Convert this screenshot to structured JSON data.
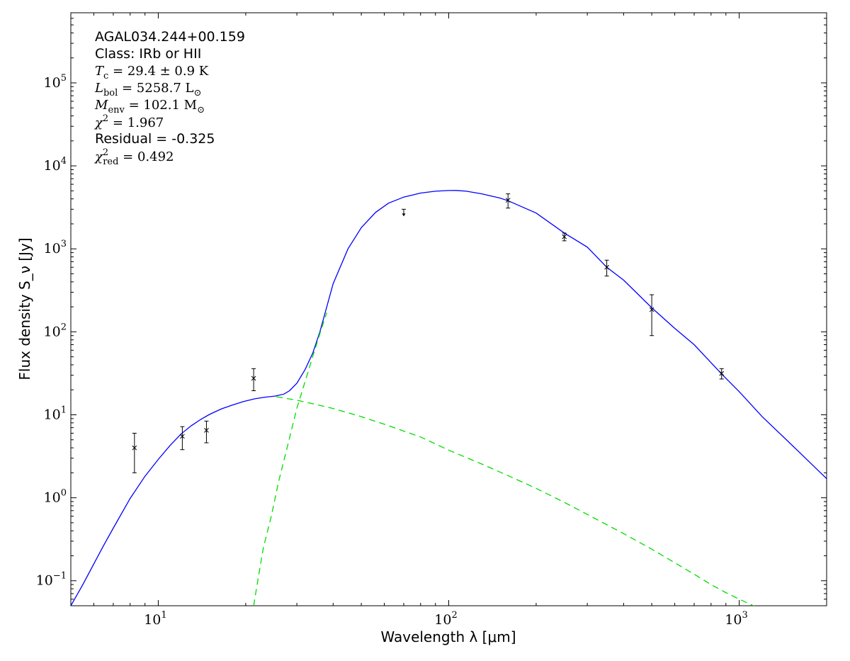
{
  "chart_data": {
    "type": "scatter",
    "xscale": "log",
    "yscale": "log",
    "xlim": [
      5,
      2000
    ],
    "ylim": [
      0.05,
      700000
    ],
    "grid": false,
    "xlabel": "Wavelength λ [μm]",
    "ylabel": "Flux density S_ν [Jy]",
    "x_ticks": [
      {
        "base": "10",
        "exp": "1",
        "value": 10
      },
      {
        "base": "10",
        "exp": "2",
        "value": 100
      },
      {
        "base": "10",
        "exp": "3",
        "value": 1000
      }
    ],
    "y_ticks": [
      {
        "base": "10",
        "exp": "−1",
        "value": 0.1
      },
      {
        "base": "10",
        "exp": "0",
        "value": 1
      },
      {
        "base": "10",
        "exp": "1",
        "value": 10
      },
      {
        "base": "10",
        "exp": "2",
        "value": 100
      },
      {
        "base": "10",
        "exp": "3",
        "value": 1000
      },
      {
        "base": "10",
        "exp": "4",
        "value": 10000
      },
      {
        "base": "10",
        "exp": "5",
        "value": 100000
      }
    ],
    "annotations": {
      "source": "AGAL034.244+00.159",
      "class_line": "Class: IRb or HII",
      "tc": {
        "sym": "T",
        "sub": "c",
        "val": " = 29.4 ± 0.9 K"
      },
      "lbol": {
        "sym": "L",
        "sub": "bol",
        "val": " = 5258.7 L",
        "val_sub": "⊙"
      },
      "menv": {
        "sym": "M",
        "sub": "env",
        "val": " = 102.1 M",
        "val_sub": "⊙"
      },
      "chi2": {
        "sym": "χ",
        "sup": "2",
        "val": " = 1.967"
      },
      "residual": "Residual = -0.325",
      "chi2red": {
        "sym": "χ",
        "sup": "2",
        "sub": "red",
        "val": " = 0.492"
      }
    },
    "points": [
      {
        "x": 8.28,
        "y": 4.0,
        "ylo": 2.0,
        "yhi": 6.0
      },
      {
        "x": 12.1,
        "y": 5.5,
        "ylo": 3.8,
        "yhi": 7.2
      },
      {
        "x": 14.65,
        "y": 6.5,
        "ylo": 4.6,
        "yhi": 8.4
      },
      {
        "x": 21.3,
        "y": 27.5,
        "ylo": 19.5,
        "yhi": 36.0
      },
      {
        "x": 160,
        "y": 3850,
        "ylo": 3100,
        "yhi": 4600
      },
      {
        "x": 250,
        "y": 1400,
        "ylo": 1250,
        "yhi": 1550
      },
      {
        "x": 350,
        "y": 600,
        "ylo": 470,
        "yhi": 730
      },
      {
        "x": 500,
        "y": 185,
        "ylo": 90,
        "yhi": 280
      },
      {
        "x": 870,
        "y": 31.5,
        "ylo": 27,
        "yhi": 36
      }
    ],
    "upper_limits": [
      {
        "x": 70,
        "y": 3000
      }
    ],
    "series": [
      {
        "style": "solid",
        "color": "#0000ff",
        "x": [
          5,
          5.5,
          6,
          6.5,
          7,
          8,
          9,
          10,
          11,
          12,
          13,
          14,
          15,
          16.5,
          18,
          19.6,
          21.5,
          23.3,
          25.2,
          27.1,
          28.3,
          30,
          32,
          34,
          36,
          40,
          45,
          50,
          56,
          62,
          70,
          80,
          90,
          100,
          106,
          115,
          130,
          150,
          160,
          200,
          250,
          300,
          350,
          400,
          500,
          600,
          700,
          870,
          1000,
          1200,
          1500,
          2000
        ],
        "y": [
          0.05,
          0.09,
          0.16,
          0.27,
          0.43,
          0.98,
          1.82,
          2.9,
          4.3,
          5.9,
          7.4,
          8.8,
          10.1,
          11.8,
          13.1,
          14.4,
          15.6,
          16.3,
          16.8,
          17.8,
          19.5,
          24,
          35,
          55,
          100,
          380,
          1000,
          1800,
          2750,
          3550,
          4200,
          4700,
          4950,
          5050,
          5060,
          4950,
          4600,
          4100,
          3800,
          2700,
          1550,
          1050,
          600,
          420,
          195,
          110,
          70,
          31,
          19,
          9.5,
          4.5,
          1.7
        ]
      },
      {
        "style": "dashed",
        "color": "#00dd00",
        "x": [
          21.3,
          22,
          23,
          24.5,
          26,
          28,
          30,
          32,
          34,
          36,
          38
        ],
        "y": [
          0.05,
          0.1,
          0.25,
          0.6,
          1.6,
          4.5,
          12,
          25,
          50,
          95,
          170
        ]
      },
      {
        "style": "dashed",
        "color": "#00dd00",
        "x": [
          25.5,
          30,
          35,
          40,
          50,
          60,
          80,
          100,
          130,
          160,
          200,
          250,
          300,
          400,
          500,
          600,
          700,
          800,
          900,
          1000,
          1150
        ],
        "y": [
          16.5,
          15,
          13.3,
          11.9,
          9.5,
          7.7,
          5.4,
          3.75,
          2.55,
          1.85,
          1.3,
          0.88,
          0.63,
          0.37,
          0.24,
          0.165,
          0.12,
          0.09,
          0.072,
          0.06,
          0.048
        ]
      }
    ]
  }
}
